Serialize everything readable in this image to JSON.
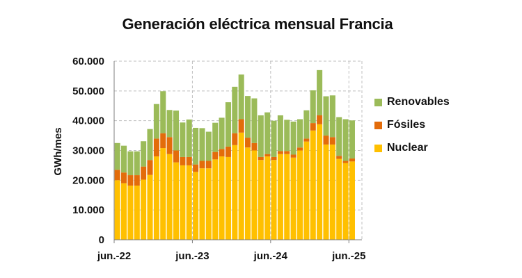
{
  "chart_data": {
    "type": "bar",
    "stacked": true,
    "title": "Generación eléctrica mensual Francia",
    "ylabel": "GWh/mes",
    "xlabel": "",
    "ylim": [
      0,
      60000
    ],
    "yticks": [
      {
        "value": 0,
        "label": "0"
      },
      {
        "value": 10000,
        "label": "10.000"
      },
      {
        "value": 20000,
        "label": "20.000"
      },
      {
        "value": 30000,
        "label": "30.000"
      },
      {
        "value": 40000,
        "label": "40.000"
      },
      {
        "value": 50000,
        "label": "50.000"
      },
      {
        "value": 60000,
        "label": "60.000"
      }
    ],
    "xticks": [
      {
        "index": 0,
        "label": "jun.-22"
      },
      {
        "index": 12,
        "label": "jun.-23"
      },
      {
        "index": 24,
        "label": "jun.-24"
      },
      {
        "index": 36,
        "label": "jun.-25"
      }
    ],
    "grid": true,
    "legend_position": "right",
    "categories": [
      "2022-06",
      "2022-07",
      "2022-08",
      "2022-09",
      "2022-10",
      "2022-11",
      "2022-12",
      "2023-01",
      "2023-02",
      "2023-03",
      "2023-04",
      "2023-05",
      "2023-06",
      "2023-07",
      "2023-08",
      "2023-09",
      "2023-10",
      "2023-11",
      "2023-12",
      "2024-01",
      "2024-02",
      "2024-03",
      "2024-04",
      "2024-05",
      "2024-06",
      "2024-07",
      "2024-08",
      "2024-09",
      "2024-10",
      "2024-11",
      "2024-12",
      "2025-01",
      "2025-02",
      "2025-03",
      "2025-04",
      "2025-05",
      "2025-06",
      "2025-07"
    ],
    "series": [
      {
        "name": "Nuclear",
        "color": "#ffc000",
        "values": [
          20000,
          19000,
          18200,
          18200,
          20200,
          21800,
          28000,
          30800,
          28800,
          26000,
          25000,
          25000,
          22800,
          24000,
          24000,
          27000,
          28000,
          27800,
          31800,
          36000,
          31000,
          30000,
          26800,
          28000,
          26800,
          28800,
          28800,
          27600,
          30000,
          33000,
          36700,
          38800,
          32000,
          32000,
          27200,
          25800,
          26300,
          0
        ]
      },
      {
        "name": "Fósiles",
        "color": "#e36c0a",
        "values": [
          3500,
          3600,
          3500,
          3500,
          4400,
          5000,
          6000,
          5000,
          5700,
          4000,
          2800,
          2800,
          2500,
          2500,
          2500,
          2500,
          2500,
          3500,
          4000,
          4500,
          3300,
          2500,
          1000,
          800,
          1000,
          1000,
          1000,
          1000,
          1000,
          1000,
          2500,
          3000,
          3000,
          2500,
          1000,
          700,
          1000,
          0
        ]
      },
      {
        "name": "Renovables",
        "color": "#9bbb59",
        "values": [
          9000,
          9000,
          8000,
          8000,
          8500,
          10400,
          11600,
          14100,
          9100,
          13400,
          11600,
          12600,
          12300,
          11000,
          9800,
          9800,
          10500,
          14900,
          15600,
          15000,
          14000,
          15000,
          14000,
          14000,
          12200,
          12000,
          10500,
          11100,
          9500,
          9500,
          11000,
          15200,
          13200,
          14000,
          13000,
          14000,
          12800,
          0
        ]
      }
    ]
  }
}
